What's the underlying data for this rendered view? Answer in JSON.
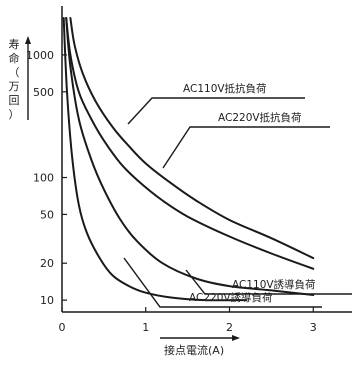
{
  "chart_data": {
    "type": "line",
    "ylabel_chars": [
      "寿",
      "命",
      "（",
      "万",
      "回",
      "）"
    ],
    "xlabel": "接点電流(A)",
    "x_ticks": [
      0,
      1,
      2,
      3
    ],
    "y_ticks": [
      10,
      20,
      50,
      100,
      500,
      1000
    ],
    "y_scale": "log",
    "xlim": [
      0,
      3.2
    ],
    "ylim": [
      8,
      2000
    ],
    "grid": false,
    "series": [
      {
        "name": "AC110V抵抗負荷",
        "x": [
          0.1,
          0.15,
          0.25,
          0.4,
          0.6,
          0.8,
          1.0,
          1.3,
          1.6,
          2.0,
          2.5,
          3.0
        ],
        "y": [
          2000,
          1200,
          700,
          420,
          260,
          180,
          130,
          90,
          65,
          45,
          32,
          22
        ]
      },
      {
        "name": "AC220V抵抗負荷",
        "x": [
          0.05,
          0.1,
          0.2,
          0.35,
          0.5,
          0.7,
          0.9,
          1.2,
          1.5,
          2.0,
          2.5,
          3.0
        ],
        "y": [
          2000,
          1000,
          500,
          300,
          200,
          130,
          95,
          65,
          48,
          33,
          24,
          18
        ]
      },
      {
        "name": "AC110V誘導負荷",
        "x": [
          0.05,
          0.1,
          0.2,
          0.35,
          0.5,
          0.7,
          0.9,
          1.2,
          1.6,
          2.0,
          2.5,
          3.0
        ],
        "y": [
          2000,
          800,
          300,
          140,
          80,
          45,
          30,
          20,
          15,
          13,
          12,
          11
        ]
      },
      {
        "name": "AC220V誘導負荷",
        "x": [
          0.02,
          0.06,
          0.12,
          0.2,
          0.3,
          0.45,
          0.6,
          0.8,
          1.0,
          1.3,
          1.7,
          2.2
        ],
        "y": [
          2000,
          500,
          150,
          60,
          35,
          22,
          16,
          13,
          11.5,
          10.5,
          10,
          10
        ]
      }
    ]
  }
}
